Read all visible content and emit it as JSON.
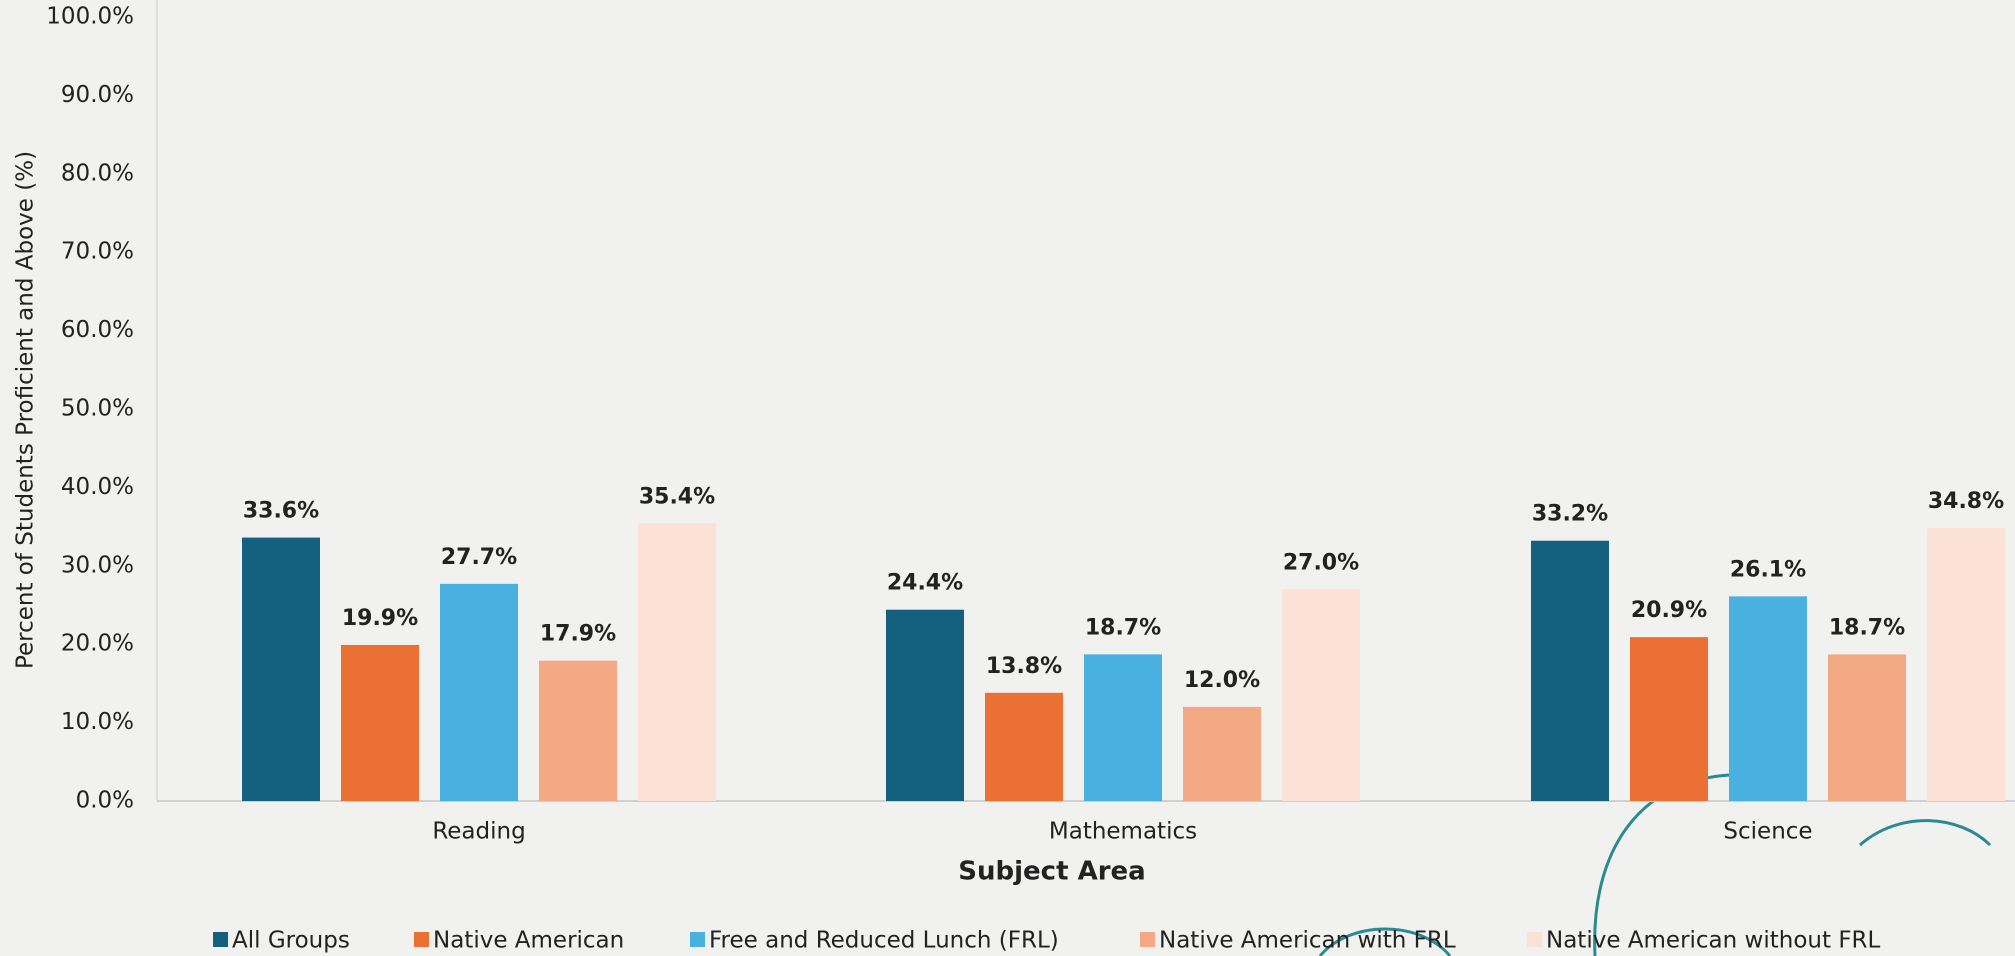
{
  "chart_data": {
    "type": "bar",
    "x_label": "Subject Area",
    "y_label": "Percent of Students Proficient and Above (%)",
    "categories": [
      "Reading",
      "Mathematics",
      "Science"
    ],
    "series": [
      {
        "name": "All Groups",
        "color": "#15607f",
        "values": [
          33.6,
          24.4,
          33.2
        ],
        "value_labels": [
          "33.6%",
          "24.4%",
          "33.2%"
        ]
      },
      {
        "name": "Native American",
        "color": "#ea7034",
        "values": [
          19.9,
          13.8,
          20.9
        ],
        "value_labels": [
          "19.9%",
          "13.8%",
          "20.9%"
        ]
      },
      {
        "name": "Free and Reduced Lunch (FRL)",
        "color": "#48b1e0",
        "values": [
          27.7,
          18.7,
          26.1
        ],
        "value_labels": [
          "27.7%",
          "18.7%",
          "26.1%"
        ]
      },
      {
        "name": "Native American with FRL",
        "color": "#f2a984",
        "values": [
          17.9,
          12.0,
          18.7
        ],
        "value_labels": [
          "17.9%",
          "12.0%",
          "18.7%"
        ]
      },
      {
        "name": "Native American without FRL",
        "color": "#fce2d6",
        "values": [
          35.4,
          27.0,
          34.8
        ],
        "value_labels": [
          "35.4%",
          "27.0%",
          "34.8%"
        ]
      }
    ],
    "ylim": [
      0,
      100
    ],
    "yticks": [
      {
        "value": 0,
        "label": "0.0%"
      },
      {
        "value": 10,
        "label": "10.0%"
      },
      {
        "value": 20,
        "label": "20.0%"
      },
      {
        "value": 30,
        "label": "30.0%"
      },
      {
        "value": 40,
        "label": "40.0%"
      },
      {
        "value": 50,
        "label": "50.0%"
      },
      {
        "value": 60,
        "label": "60.0%"
      },
      {
        "value": 70,
        "label": "70.0%"
      },
      {
        "value": 80,
        "label": "80.0%"
      },
      {
        "value": 90,
        "label": "90.0%"
      },
      {
        "value": 100,
        "label": "100.0%"
      }
    ],
    "grid": false,
    "legend": "bottom"
  }
}
